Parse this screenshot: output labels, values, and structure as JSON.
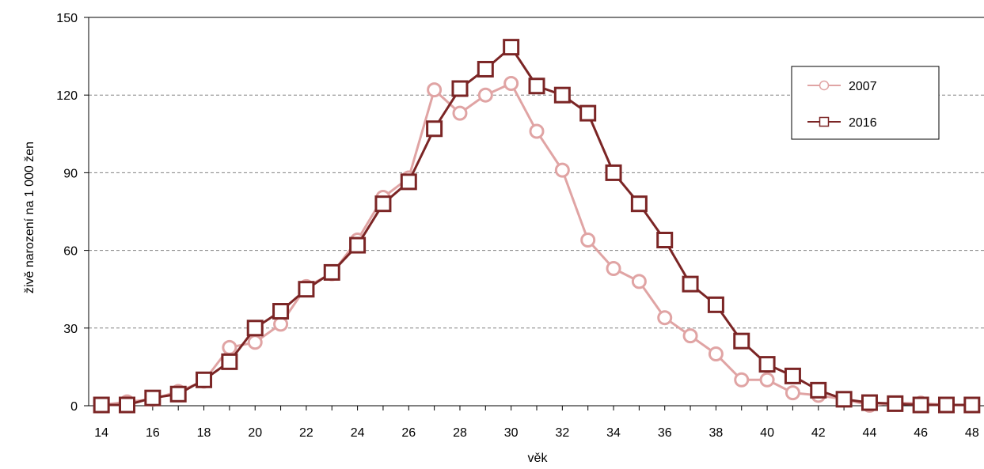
{
  "chart_data": {
    "type": "line",
    "title": "",
    "xlabel": "věk",
    "ylabel": "živě narození na 1 000 žen",
    "x": [
      14,
      15,
      16,
      17,
      18,
      19,
      20,
      21,
      22,
      23,
      24,
      25,
      26,
      27,
      28,
      29,
      30,
      31,
      32,
      33,
      34,
      35,
      36,
      37,
      38,
      39,
      40,
      41,
      42,
      43,
      44,
      45,
      46,
      47,
      48
    ],
    "x_tick_labels": [
      "14",
      "16",
      "18",
      "20",
      "22",
      "24",
      "26",
      "28",
      "30",
      "32",
      "34",
      "36",
      "38",
      "40",
      "42",
      "44",
      "46",
      "48"
    ],
    "y_tick_labels": [
      "0",
      "30",
      "60",
      "90",
      "120",
      "150"
    ],
    "ylim": [
      0,
      150
    ],
    "xlim": [
      13.5,
      48.5
    ],
    "grid": "horizontal dashed",
    "legend_position": "top-right",
    "series": [
      {
        "name": "2007",
        "color": "#e0a4a4",
        "marker": "circle",
        "values": [
          0.3,
          1.5,
          2.5,
          5.5,
          9.5,
          22.5,
          24.5,
          31.5,
          46,
          51,
          64,
          80.5,
          88,
          122,
          113,
          120,
          124.5,
          106,
          91,
          64,
          53,
          48,
          34,
          27,
          20,
          10,
          10,
          5,
          4,
          2.5,
          0.2,
          1,
          1,
          0.3,
          0.2
        ]
      },
      {
        "name": "2016",
        "color": "#7b2525",
        "marker": "square",
        "values": [
          0.3,
          0.3,
          3,
          4.5,
          10,
          17,
          30,
          36.5,
          45,
          51.5,
          62,
          78,
          86.5,
          107,
          122.5,
          130,
          138.5,
          123.5,
          120,
          113,
          90,
          78,
          64,
          47,
          39,
          25,
          16,
          11.5,
          6,
          2.5,
          1.2,
          0.8,
          0.3,
          0.3,
          0.3
        ]
      }
    ]
  }
}
